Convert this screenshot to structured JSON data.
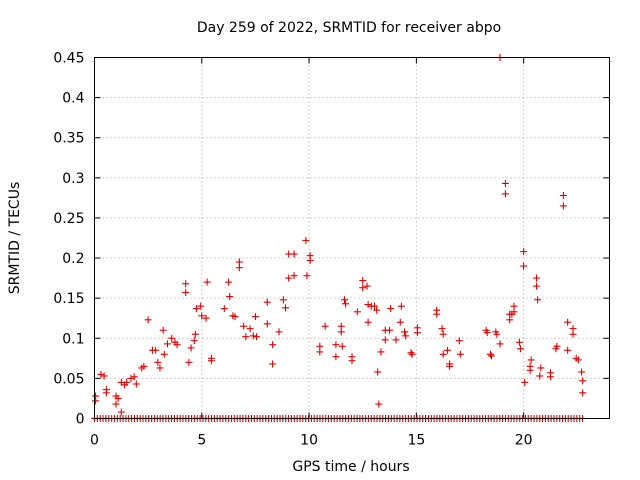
{
  "chart_data": {
    "type": "scatter",
    "title": "Day 259 of 2022, SRMTID for receiver abpo",
    "xlabel": "GPS time / hours",
    "ylabel": "SRMTID / TECUs",
    "xlim": [
      0,
      24
    ],
    "ylim": [
      0,
      0.45
    ],
    "grid": true,
    "marker": "+",
    "marker_color": "#e00000",
    "xticks": [
      0,
      5,
      10,
      15,
      20
    ],
    "xtick_labels": [
      "0",
      "5",
      "10",
      "15",
      "20"
    ],
    "yticks": [
      0,
      0.05,
      0.1,
      0.15,
      0.2,
      0.25,
      0.3,
      0.35,
      0.4,
      0.45
    ],
    "ytick_labels": [
      "0",
      "0.05",
      "0.1",
      "0.15",
      "0.2",
      "0.25",
      "0.3",
      "0.35",
      "0.4",
      "0.45"
    ],
    "zero_series": {
      "x_start": 0.0,
      "x_end": 22.8,
      "step": 0.133,
      "y": 0
    },
    "series": [
      {
        "name": "SRMTID",
        "points": [
          [
            0.05,
            0.028
          ],
          [
            0.05,
            0.022
          ],
          [
            0.3,
            0.055
          ],
          [
            0.45,
            0.053
          ],
          [
            0.55,
            0.036
          ],
          [
            0.55,
            0.032
          ],
          [
            1.0,
            0.028
          ],
          [
            1.1,
            0.025
          ],
          [
            1.0,
            0.018
          ],
          [
            1.25,
            0.008
          ],
          [
            1.25,
            0.045
          ],
          [
            1.4,
            0.042
          ],
          [
            1.5,
            0.045
          ],
          [
            1.7,
            0.05
          ],
          [
            1.85,
            0.052
          ],
          [
            1.95,
            0.043
          ],
          [
            2.2,
            0.063
          ],
          [
            2.3,
            0.065
          ],
          [
            2.5,
            0.123
          ],
          [
            2.7,
            0.085
          ],
          [
            2.85,
            0.085
          ],
          [
            2.95,
            0.07
          ],
          [
            3.05,
            0.063
          ],
          [
            3.2,
            0.11
          ],
          [
            3.25,
            0.08
          ],
          [
            3.4,
            0.093
          ],
          [
            3.6,
            0.1
          ],
          [
            3.75,
            0.095
          ],
          [
            3.85,
            0.092
          ],
          [
            4.25,
            0.168
          ],
          [
            4.25,
            0.157
          ],
          [
            4.4,
            0.07
          ],
          [
            4.5,
            0.088
          ],
          [
            4.65,
            0.097
          ],
          [
            4.7,
            0.105
          ],
          [
            4.75,
            0.137
          ],
          [
            4.95,
            0.14
          ],
          [
            5.0,
            0.128
          ],
          [
            5.2,
            0.125
          ],
          [
            5.25,
            0.17
          ],
          [
            5.45,
            0.075
          ],
          [
            5.45,
            0.072
          ],
          [
            6.05,
            0.137
          ],
          [
            6.25,
            0.17
          ],
          [
            6.3,
            0.152
          ],
          [
            6.45,
            0.128
          ],
          [
            6.55,
            0.127
          ],
          [
            6.75,
            0.195
          ],
          [
            6.75,
            0.188
          ],
          [
            6.95,
            0.115
          ],
          [
            7.05,
            0.102
          ],
          [
            7.25,
            0.112
          ],
          [
            7.4,
            0.103
          ],
          [
            7.5,
            0.127
          ],
          [
            7.55,
            0.102
          ],
          [
            8.05,
            0.145
          ],
          [
            8.05,
            0.118
          ],
          [
            8.3,
            0.068
          ],
          [
            8.3,
            0.092
          ],
          [
            8.6,
            0.108
          ],
          [
            8.8,
            0.148
          ],
          [
            8.9,
            0.138
          ],
          [
            9.05,
            0.175
          ],
          [
            9.05,
            0.205
          ],
          [
            9.3,
            0.205
          ],
          [
            9.3,
            0.178
          ],
          [
            9.85,
            0.222
          ],
          [
            9.9,
            0.178
          ],
          [
            10.05,
            0.203
          ],
          [
            10.05,
            0.197
          ],
          [
            10.5,
            0.09
          ],
          [
            10.5,
            0.083
          ],
          [
            10.75,
            0.115
          ],
          [
            11.25,
            0.092
          ],
          [
            11.25,
            0.077
          ],
          [
            11.5,
            0.115
          ],
          [
            11.5,
            0.108
          ],
          [
            11.55,
            0.09
          ],
          [
            11.65,
            0.148
          ],
          [
            11.7,
            0.143
          ],
          [
            12.0,
            0.077
          ],
          [
            12.0,
            0.072
          ],
          [
            12.25,
            0.133
          ],
          [
            12.5,
            0.172
          ],
          [
            12.5,
            0.163
          ],
          [
            12.7,
            0.165
          ],
          [
            12.75,
            0.142
          ],
          [
            12.75,
            0.12
          ],
          [
            12.9,
            0.14
          ],
          [
            13.05,
            0.14
          ],
          [
            13.15,
            0.135
          ],
          [
            13.2,
            0.058
          ],
          [
            13.25,
            0.018
          ],
          [
            13.35,
            0.083
          ],
          [
            13.55,
            0.11
          ],
          [
            13.55,
            0.098
          ],
          [
            13.75,
            0.11
          ],
          [
            13.8,
            0.137
          ],
          [
            14.05,
            0.098
          ],
          [
            14.25,
            0.12
          ],
          [
            14.3,
            0.14
          ],
          [
            14.45,
            0.108
          ],
          [
            14.5,
            0.103
          ],
          [
            14.75,
            0.082
          ],
          [
            14.8,
            0.08
          ],
          [
            15.05,
            0.113
          ],
          [
            15.05,
            0.107
          ],
          [
            15.95,
            0.135
          ],
          [
            15.95,
            0.13
          ],
          [
            16.2,
            0.112
          ],
          [
            16.25,
            0.105
          ],
          [
            16.25,
            0.08
          ],
          [
            16.45,
            0.085
          ],
          [
            16.55,
            0.068
          ],
          [
            16.55,
            0.065
          ],
          [
            17.0,
            0.097
          ],
          [
            17.05,
            0.08
          ],
          [
            18.25,
            0.11
          ],
          [
            18.3,
            0.107
          ],
          [
            18.45,
            0.08
          ],
          [
            18.5,
            0.078
          ],
          [
            18.7,
            0.108
          ],
          [
            18.75,
            0.105
          ],
          [
            18.9,
            0.093
          ],
          [
            18.9,
            0.45
          ],
          [
            19.15,
            0.293
          ],
          [
            19.15,
            0.28
          ],
          [
            19.35,
            0.13
          ],
          [
            19.35,
            0.123
          ],
          [
            19.45,
            0.13
          ],
          [
            19.55,
            0.133
          ],
          [
            19.55,
            0.14
          ],
          [
            19.8,
            0.095
          ],
          [
            19.85,
            0.087
          ],
          [
            20.0,
            0.208
          ],
          [
            20.0,
            0.19
          ],
          [
            20.05,
            0.045
          ],
          [
            20.3,
            0.06
          ],
          [
            20.3,
            0.065
          ],
          [
            20.35,
            0.073
          ],
          [
            20.6,
            0.175
          ],
          [
            20.6,
            0.165
          ],
          [
            20.65,
            0.148
          ],
          [
            20.75,
            0.053
          ],
          [
            20.8,
            0.063
          ],
          [
            21.25,
            0.057
          ],
          [
            21.25,
            0.052
          ],
          [
            21.5,
            0.087
          ],
          [
            21.55,
            0.09
          ],
          [
            21.85,
            0.278
          ],
          [
            21.85,
            0.265
          ],
          [
            22.05,
            0.12
          ],
          [
            22.05,
            0.085
          ],
          [
            22.3,
            0.112
          ],
          [
            22.3,
            0.105
          ],
          [
            22.45,
            0.075
          ],
          [
            22.55,
            0.073
          ],
          [
            22.7,
            0.058
          ],
          [
            22.75,
            0.047
          ],
          [
            22.75,
            0.032
          ]
        ]
      }
    ]
  }
}
